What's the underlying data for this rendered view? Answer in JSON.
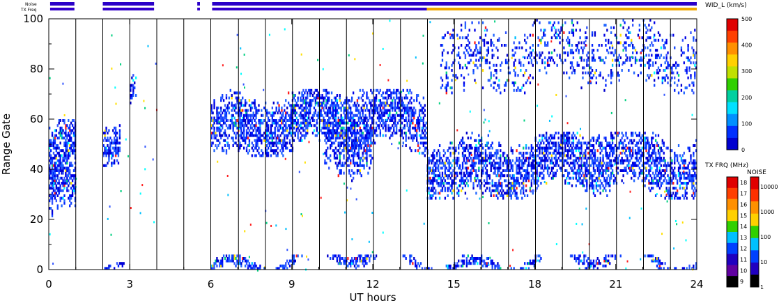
{
  "chart_data": {
    "type": "heatmap",
    "ylabel": "Range Gate",
    "xlabel": "UT hours",
    "x_ticks": [
      "0",
      "3",
      "6",
      "9",
      "12",
      "15",
      "18",
      "21",
      "24"
    ],
    "y_ticks": [
      "0",
      "20",
      "40",
      "60",
      "80",
      "100"
    ],
    "xlim": [
      0,
      24
    ],
    "ylim": [
      0,
      100
    ],
    "status_labels": {
      "noise": "Noise",
      "txfreq": "TX Freq"
    },
    "status_segments": [
      {
        "start": 0.05,
        "end": 0.95
      },
      {
        "start": 2.0,
        "end": 3.9
      },
      {
        "start": 5.5,
        "end": 5.6
      },
      {
        "start": 6.05,
        "end": 24.0
      }
    ],
    "txfreq_change_hour": 14.0,
    "scan_lines_hours": [
      1,
      2,
      3,
      4,
      5,
      6,
      7,
      8,
      9,
      10,
      11,
      12,
      13,
      14,
      15,
      16,
      17,
      18,
      19,
      20,
      21,
      22,
      23
    ],
    "main_colorbar": {
      "title": "WID_L (km/s)",
      "ticks": [
        "500",
        "400",
        "300",
        "200",
        "100",
        "0"
      ],
      "range": [
        0,
        500
      ]
    },
    "txfreq_colorbar": {
      "title": "TX FRQ (MHz)",
      "ticks": [
        "18",
        "17",
        "16",
        "15",
        "14",
        "13",
        "12",
        "11",
        "10",
        "9"
      ]
    },
    "noise_colorbar": {
      "title": "NOISE",
      "ticks": [
        "10000",
        "1000",
        "100",
        "10",
        "1"
      ]
    },
    "echo_regions": [
      {
        "start": 0.0,
        "end": 1.0,
        "gate_low": 18,
        "gate_high": 60,
        "density": 0.7
      },
      {
        "start": 2.0,
        "end": 2.6,
        "gate_low": 40,
        "gate_high": 58,
        "density": 0.6
      },
      {
        "start": 3.0,
        "end": 3.2,
        "gate_low": 62,
        "gate_high": 78,
        "density": 0.5
      },
      {
        "start": 6.0,
        "end": 14.0,
        "gate_low": 45,
        "gate_high": 72,
        "density": 0.6
      },
      {
        "start": 10.2,
        "end": 12.0,
        "gate_low": 35,
        "gate_high": 60,
        "density": 0.5
      },
      {
        "start": 14.0,
        "end": 24.0,
        "gate_low": 28,
        "gate_high": 55,
        "density": 0.55
      },
      {
        "start": 14.5,
        "end": 24.0,
        "gate_low": 70,
        "gate_high": 100,
        "density": 0.2
      },
      {
        "start": 6.0,
        "end": 24.0,
        "gate_low": 0,
        "gate_high": 6,
        "density": 0.6
      },
      {
        "start": 2.0,
        "end": 3.9,
        "gate_low": 0,
        "gate_high": 3,
        "density": 0.5
      }
    ]
  }
}
